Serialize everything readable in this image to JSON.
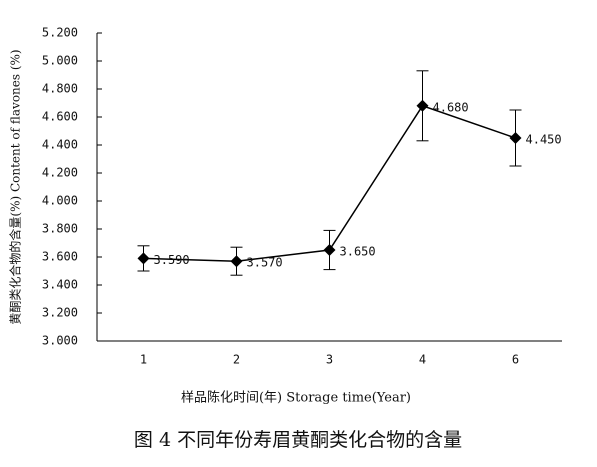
{
  "chart_data": {
    "type": "line",
    "caption": "图 4  不同年份寿眉黄酮类化合物的含量",
    "x_label": "样品陈化时间(年)  Storage time(Year)",
    "y_label": "黄酮类化合物的含量(%) Content of flavones (%)",
    "categories": [
      "1",
      "2",
      "3",
      "4",
      "6"
    ],
    "values": [
      3.59,
      3.57,
      3.65,
      4.68,
      4.45
    ],
    "value_labels": [
      "3.590",
      "3.570",
      "3.650",
      "4.680",
      "4.450"
    ],
    "errors": [
      0.09,
      0.1,
      0.14,
      0.25,
      0.2
    ],
    "color": "#000000",
    "ylim": [
      3.0,
      5.2
    ],
    "yticks": [
      {
        "value": 3.0,
        "label": "3.000"
      },
      {
        "value": 3.2,
        "label": "3.200"
      },
      {
        "value": 3.4,
        "label": "3.400"
      },
      {
        "value": 3.6,
        "label": "3.600"
      },
      {
        "value": 3.8,
        "label": "3.800"
      },
      {
        "value": 4.0,
        "label": "4.000"
      },
      {
        "value": 4.2,
        "label": "4.200"
      },
      {
        "value": 4.4,
        "label": "4.400"
      },
      {
        "value": 4.6,
        "label": "4.600"
      },
      {
        "value": 4.8,
        "label": "4.800"
      },
      {
        "value": 5.0,
        "label": "5.000"
      },
      {
        "value": 5.2,
        "label": "5.200"
      }
    ],
    "grid": false
  }
}
